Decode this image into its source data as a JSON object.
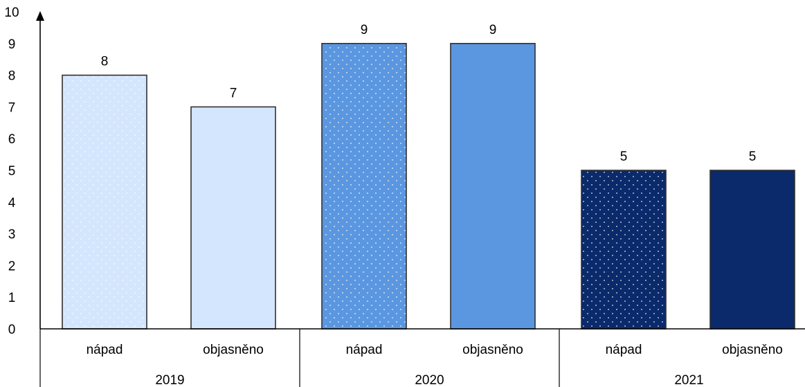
{
  "chart_data": {
    "type": "bar",
    "title": "",
    "xlabel": "",
    "ylabel": "",
    "ylim": [
      0,
      10
    ],
    "yticks": [
      0,
      1,
      2,
      3,
      4,
      5,
      6,
      7,
      8,
      9,
      10
    ],
    "grid": false,
    "legend": "none",
    "groups": [
      {
        "label": "2019",
        "bars": [
          {
            "category": "nápad",
            "value": 8,
            "value_label": "8",
            "color": "#d4e6fd",
            "pattern": "dotted"
          },
          {
            "category": "objasněno",
            "value": 7,
            "value_label": "7",
            "color": "#d4e6fd",
            "pattern": "solid"
          }
        ]
      },
      {
        "label": "2020",
        "bars": [
          {
            "category": "nápad",
            "value": 9,
            "value_label": "9",
            "color": "#5b97e0",
            "pattern": "dotted"
          },
          {
            "category": "objasněno",
            "value": 9,
            "value_label": "9",
            "color": "#5b97e0",
            "pattern": "solid"
          }
        ]
      },
      {
        "label": "2021",
        "bars": [
          {
            "category": "nápad",
            "value": 5,
            "value_label": "5",
            "color": "#0a2a6b",
            "pattern": "dotted"
          },
          {
            "category": "objasněno",
            "value": 5,
            "value_label": "5",
            "color": "#0a2a6b",
            "pattern": "solid"
          }
        ]
      }
    ]
  }
}
